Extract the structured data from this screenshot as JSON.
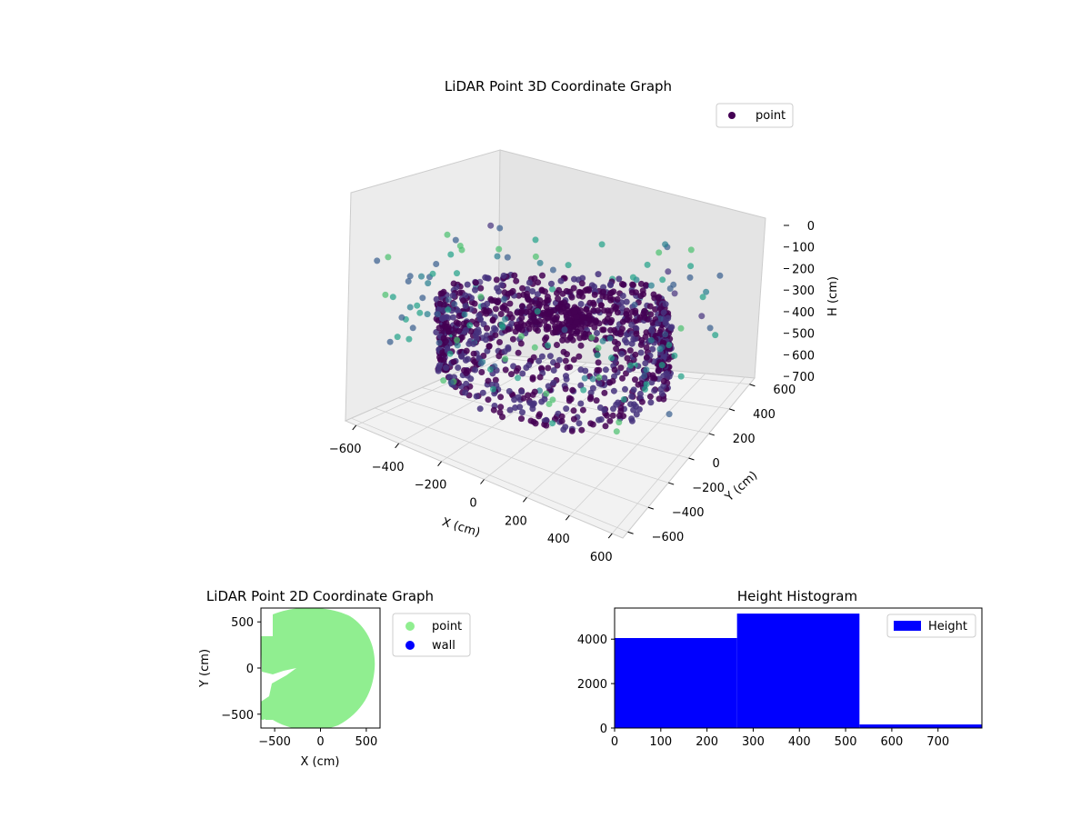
{
  "chart_data": [
    {
      "type": "scatter3d",
      "title": "LiDAR Point 3D Coordinate Graph",
      "xlabel": "X (cm)",
      "ylabel": "Y (cm)",
      "zlabel": "H (cm)",
      "xticks": [
        "−600",
        "−400",
        "−200",
        "0",
        "200",
        "400",
        "600"
      ],
      "yticks": [
        "600",
        "400",
        "200",
        "0",
        "−200",
        "−400",
        "−600"
      ],
      "zticks": [
        "0",
        "100",
        "200",
        "300",
        "400",
        "500",
        "600",
        "700"
      ],
      "xlim": [
        -650,
        650
      ],
      "ylim": [
        -650,
        650
      ],
      "zlim": [
        0,
        750
      ],
      "z_inverted": true,
      "colormap": "viridis",
      "legend": {
        "label": "point",
        "placement": "top-right",
        "color": "#440154"
      },
      "grid": true
    },
    {
      "type": "scatter",
      "title": "LiDAR Point 2D Coordinate Graph",
      "xlabel": "X (cm)",
      "ylabel": "Y (cm)",
      "xticks": [
        "−500",
        "0",
        "500"
      ],
      "yticks": [
        "500",
        "0",
        "−500"
      ],
      "xlim": [
        -650,
        650
      ],
      "ylim": [
        -650,
        650
      ],
      "series": [
        {
          "name": "point",
          "color": "#90ee90"
        },
        {
          "name": "wall",
          "color": "#0000ff"
        }
      ],
      "legend_placement": "outside-right"
    },
    {
      "type": "bar",
      "title": "Height Histogram",
      "bins": [
        [
          0,
          265
        ],
        [
          265,
          530
        ],
        [
          530,
          795
        ]
      ],
      "values": [
        4050,
        5150,
        160
      ],
      "xticks": [
        "0",
        "100",
        "200",
        "300",
        "400",
        "500",
        "600",
        "700"
      ],
      "yticks": [
        "0",
        "2000",
        "4000"
      ],
      "xlim": [
        0,
        795
      ],
      "ylim": [
        0,
        5400
      ],
      "series": [
        {
          "name": "Height",
          "color": "#0000ff"
        }
      ],
      "legend_placement": "top-right"
    }
  ]
}
